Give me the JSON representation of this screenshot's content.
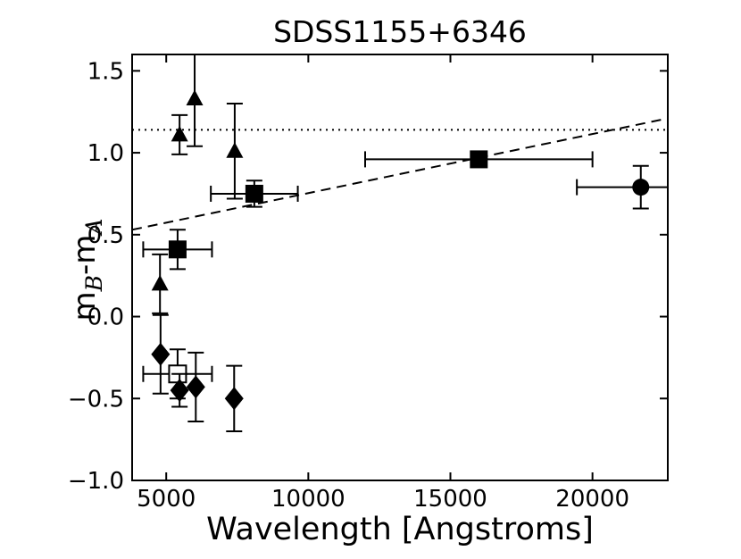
{
  "figure": {
    "background": "#ffffff",
    "ink_color": "#000000"
  },
  "chart_data": {
    "type": "scatter",
    "title": "SDSS1155+6346",
    "xlabel": "Wavelength [Angstroms]",
    "ylabel": "mB-mA",
    "ylabel_parts": {
      "m1": "m",
      "sub1": "B",
      "mid": "-m",
      "sub2": "A"
    },
    "xlim": [
      3800,
      22650
    ],
    "ylim": [
      -1.0,
      1.6
    ],
    "xticks": [
      5000,
      10000,
      15000,
      20000
    ],
    "xticklabels": [
      "5000",
      "10000",
      "15000",
      "20000"
    ],
    "yticks": [
      -1.0,
      -0.5,
      0.0,
      0.5,
      1.0,
      1.5
    ],
    "yticklabels": [
      "−1.0",
      "−0.5",
      "0.0",
      "0.5",
      "1.0",
      "1.5"
    ],
    "grid": false,
    "legend": null,
    "reference_lines": {
      "dotted_horizontal_y": 1.14,
      "dashed_trend": {
        "x1": 3800,
        "y1": 0.53,
        "x2": 22650,
        "y2": 1.21
      }
    },
    "series": [
      {
        "name": "triangles-filled",
        "marker": "triangle",
        "fill": "#000000",
        "points": [
          {
            "x": 4780,
            "y": 0.2,
            "yerr": 0.18
          },
          {
            "x": 5470,
            "y": 1.11,
            "yerr": 0.12
          },
          {
            "x": 6000,
            "y": 1.33,
            "yerr_lo": 0.29,
            "yerr_hi": 0.35
          },
          {
            "x": 7410,
            "y": 1.01,
            "yerr": 0.29
          }
        ]
      },
      {
        "name": "squares-filled",
        "marker": "square",
        "fill": "#000000",
        "points": [
          {
            "x": 5400,
            "y": 0.41,
            "xerr": 1210,
            "yerr": 0.12
          },
          {
            "x": 8100,
            "y": 0.75,
            "xerr": 1530,
            "yerr": 0.08
          },
          {
            "x": 16000,
            "y": 0.96,
            "xerr": 4000
          }
        ]
      },
      {
        "name": "square-open",
        "marker": "square-open",
        "fill": "#ffffff",
        "points": [
          {
            "x": 5400,
            "y": -0.35,
            "xerr": 1210,
            "yerr": 0.15
          }
        ]
      },
      {
        "name": "diamonds-filled",
        "marker": "diamond",
        "fill": "#000000",
        "points": [
          {
            "x": 4800,
            "y": -0.23,
            "yerr": 0.24
          },
          {
            "x": 5470,
            "y": -0.45,
            "yerr": 0.1
          },
          {
            "x": 6040,
            "y": -0.43,
            "yerr": 0.21
          },
          {
            "x": 7390,
            "y": -0.5,
            "yerr": 0.2
          }
        ]
      },
      {
        "name": "circle-filled",
        "marker": "circle",
        "fill": "#000000",
        "points": [
          {
            "x": 21700,
            "y": 0.79,
            "xerr": 2250,
            "yerr": 0.13
          }
        ]
      }
    ]
  }
}
